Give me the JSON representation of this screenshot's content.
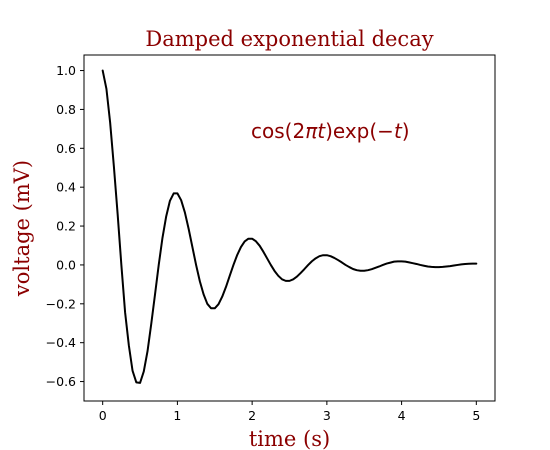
{
  "chart_data": {
    "type": "line",
    "title": "Damped exponential decay",
    "xlabel": "time (s)",
    "ylabel": "voltage (mV)",
    "xlim": [
      -0.25,
      5.25
    ],
    "ylim": [
      -0.7,
      1.08
    ],
    "xticks": [
      0,
      1,
      2,
      3,
      4,
      5
    ],
    "xtick_labels": [
      "0",
      "1",
      "2",
      "3",
      "4",
      "5"
    ],
    "yticks": [
      1.0,
      0.8,
      0.6,
      0.4,
      0.2,
      0.0,
      -0.2,
      -0.4,
      -0.6
    ],
    "ytick_labels": [
      "1.0",
      "0.8",
      "0.6",
      "0.4",
      "0.2",
      "0.0",
      "−0.2",
      "−0.4",
      "−0.6"
    ],
    "grid": false,
    "annotation": {
      "x": 2.0,
      "y": 0.65,
      "prefix": "cos(2",
      "pi": "π",
      "t1": "t",
      "middle": ")exp(−",
      "t2": "t",
      "suffix": ")"
    },
    "series": [
      {
        "color": "#000000",
        "x": [
          0.0,
          0.05,
          0.1,
          0.15,
          0.2,
          0.25,
          0.3,
          0.35,
          0.4,
          0.45,
          0.5,
          0.55,
          0.6,
          0.65,
          0.7,
          0.75,
          0.8,
          0.85,
          0.9,
          0.95,
          1.0,
          1.05,
          1.1,
          1.15,
          1.2,
          1.25,
          1.3,
          1.35,
          1.4,
          1.45,
          1.5,
          1.55,
          1.6,
          1.65,
          1.7,
          1.75,
          1.8,
          1.85,
          1.9,
          1.95,
          2.0,
          2.05,
          2.1,
          2.15,
          2.2,
          2.25,
          2.3,
          2.35,
          2.4,
          2.45,
          2.5,
          2.55,
          2.6,
          2.65,
          2.7,
          2.75,
          2.8,
          2.85,
          2.9,
          2.95,
          3.0,
          3.05,
          3.1,
          3.15,
          3.2,
          3.25,
          3.3,
          3.35,
          3.4,
          3.45,
          3.5,
          3.55,
          3.6,
          3.65,
          3.7,
          3.75,
          3.8,
          3.85,
          3.9,
          3.95,
          4.0,
          4.05,
          4.1,
          4.15,
          4.2,
          4.25,
          4.3,
          4.35,
          4.4,
          4.45,
          4.5,
          4.55,
          4.6,
          4.65,
          4.7,
          4.75,
          4.8,
          4.85,
          4.9,
          4.95,
          5.0
        ],
        "y": [
          1.0,
          0.906,
          0.732,
          0.506,
          0.262,
          0.0,
          -0.244,
          -0.414,
          -0.545,
          -0.604,
          -0.607,
          -0.548,
          -0.444,
          -0.303,
          -0.153,
          0.0,
          0.139,
          0.25,
          0.33,
          0.368,
          0.368,
          0.333,
          0.27,
          0.186,
          0.093,
          0.0,
          -0.084,
          -0.151,
          -0.2,
          -0.223,
          -0.223,
          -0.202,
          -0.163,
          -0.113,
          -0.056,
          0.0,
          0.051,
          0.092,
          0.121,
          0.135,
          0.135,
          0.122,
          0.099,
          0.068,
          0.034,
          0.0,
          -0.031,
          -0.056,
          -0.074,
          -0.082,
          -0.082,
          -0.074,
          -0.06,
          -0.041,
          -0.021,
          0.0,
          0.019,
          0.034,
          0.045,
          0.05,
          0.05,
          0.045,
          0.036,
          0.025,
          0.013,
          0.0,
          -0.011,
          -0.021,
          -0.027,
          -0.03,
          -0.03,
          -0.027,
          -0.022,
          -0.015,
          -0.008,
          0.0,
          0.007,
          0.012,
          0.017,
          0.018,
          0.018,
          0.017,
          0.013,
          0.009,
          0.005,
          0.0,
          -0.004,
          -0.008,
          -0.01,
          -0.011,
          -0.011,
          -0.01,
          -0.008,
          -0.006,
          -0.003,
          0.0,
          0.003,
          0.005,
          0.006,
          0.007,
          0.007
        ]
      }
    ]
  }
}
